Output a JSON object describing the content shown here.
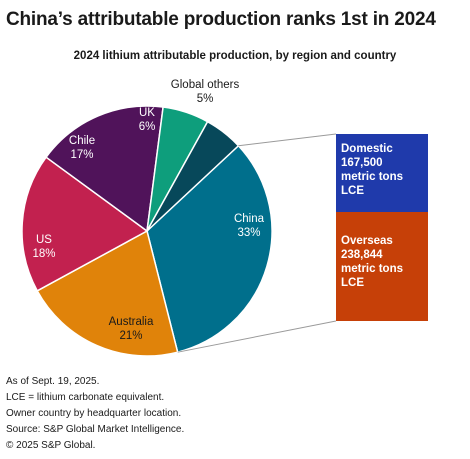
{
  "title": "China’s attributable production ranks 1st in 2024",
  "chart_data": {
    "type": "pie",
    "title": "2024 lithium attributable production, by region and country",
    "slices": [
      {
        "label": "China",
        "value": 33,
        "value_label": "33%",
        "color": "#006f8c"
      },
      {
        "label": "Australia",
        "value": 21,
        "value_label": "21%",
        "color": "#e0830a"
      },
      {
        "label": "US",
        "value": 18,
        "value_label": "18%",
        "color": "#c2214f"
      },
      {
        "label": "Chile",
        "value": 17,
        "value_label": "17%",
        "color": "#50135a"
      },
      {
        "label": "UK",
        "value": 6,
        "value_label": "6%",
        "color": "#0e9e7c"
      },
      {
        "label": "Global others",
        "value": 5,
        "value_label": "5%",
        "color": "#07485a"
      }
    ],
    "breakdown": {
      "of": "China",
      "segments": [
        {
          "label": "Domestic",
          "value": 167500,
          "lines": [
            "Domestic",
            "167,500",
            "metric tons",
            "LCE"
          ],
          "color": "#1f3aab"
        },
        {
          "label": "Overseas",
          "value": 238844,
          "lines": [
            "Overseas",
            "238,844",
            "metric tons",
            "LCE"
          ],
          "color": "#c64008"
        }
      ]
    }
  },
  "footnotes": [
    "As of Sept. 19, 2025.",
    "LCE = lithium carbonate equivalent.",
    "Owner country by headquarter location.",
    "Source: S&P Global Market Intelligence.",
    "© 2025 S&P Global."
  ]
}
